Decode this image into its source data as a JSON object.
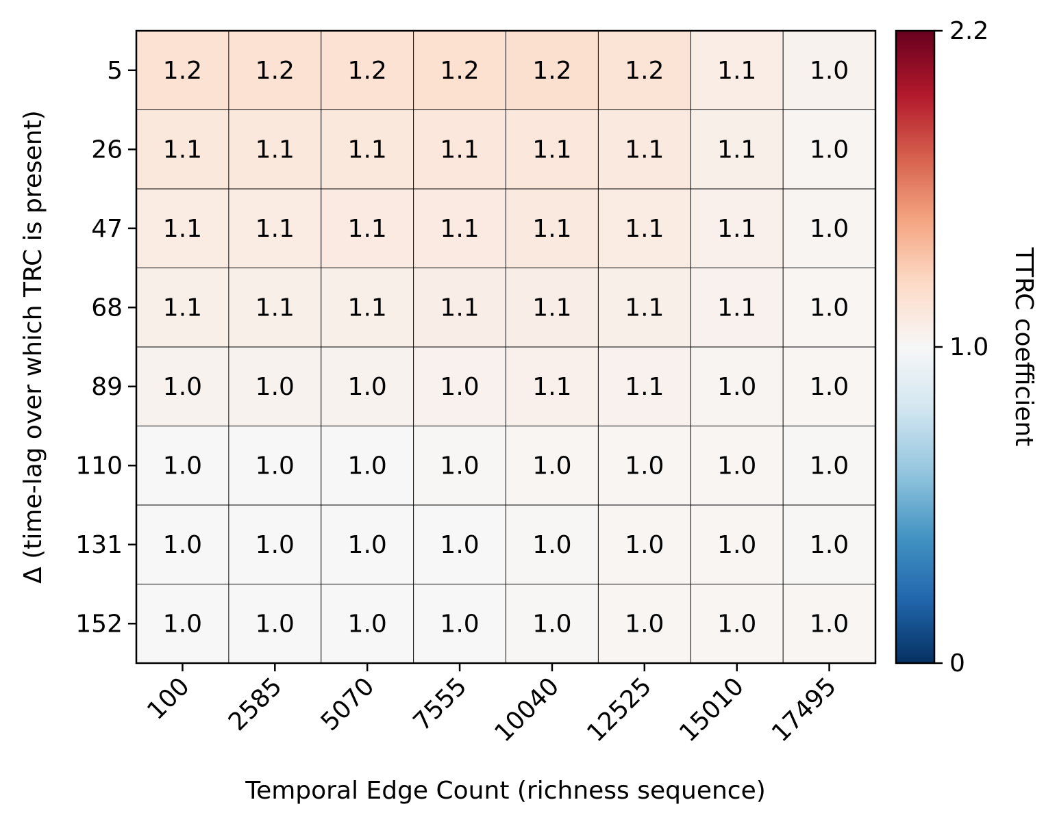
{
  "chart_data": {
    "type": "heatmap",
    "title": "",
    "xlabel": "Temporal Edge Count (richness sequence)",
    "ylabel": "Δ (time-lag over which TRC is present)",
    "x_categories": [
      "100",
      "2585",
      "5070",
      "7555",
      "10040",
      "12525",
      "15010",
      "17495"
    ],
    "y_categories": [
      "5",
      "26",
      "47",
      "68",
      "89",
      "110",
      "131",
      "152"
    ],
    "values": [
      [
        1.18,
        1.18,
        1.18,
        1.19,
        1.2,
        1.17,
        1.09,
        1.04
      ],
      [
        1.13,
        1.13,
        1.13,
        1.14,
        1.14,
        1.12,
        1.07,
        1.03
      ],
      [
        1.1,
        1.1,
        1.11,
        1.11,
        1.12,
        1.1,
        1.06,
        1.03
      ],
      [
        1.07,
        1.07,
        1.07,
        1.08,
        1.08,
        1.07,
        1.05,
        1.02
      ],
      [
        1.04,
        1.04,
        1.04,
        1.05,
        1.06,
        1.05,
        1.03,
        1.02
      ],
      [
        1.0,
        1.0,
        1.0,
        1.01,
        1.02,
        1.02,
        1.02,
        1.01
      ],
      [
        1.0,
        1.0,
        1.0,
        1.0,
        1.01,
        1.02,
        1.02,
        1.01
      ],
      [
        1.0,
        1.0,
        1.0,
        1.0,
        1.01,
        1.02,
        1.02,
        1.02
      ]
    ],
    "cell_labels": [
      [
        "1.2",
        "1.2",
        "1.2",
        "1.2",
        "1.2",
        "1.2",
        "1.1",
        "1.0"
      ],
      [
        "1.1",
        "1.1",
        "1.1",
        "1.1",
        "1.1",
        "1.1",
        "1.1",
        "1.0"
      ],
      [
        "1.1",
        "1.1",
        "1.1",
        "1.1",
        "1.1",
        "1.1",
        "1.1",
        "1.0"
      ],
      [
        "1.1",
        "1.1",
        "1.1",
        "1.1",
        "1.1",
        "1.1",
        "1.1",
        "1.0"
      ],
      [
        "1.0",
        "1.0",
        "1.0",
        "1.0",
        "1.1",
        "1.1",
        "1.0",
        "1.0"
      ],
      [
        "1.0",
        "1.0",
        "1.0",
        "1.0",
        "1.0",
        "1.0",
        "1.0",
        "1.0"
      ],
      [
        "1.0",
        "1.0",
        "1.0",
        "1.0",
        "1.0",
        "1.0",
        "1.0",
        "1.0"
      ],
      [
        "1.0",
        "1.0",
        "1.0",
        "1.0",
        "1.0",
        "1.0",
        "1.0",
        "1.0"
      ]
    ],
    "colorbar": {
      "label": "TTRC coefficient",
      "colormap": "RdBu_r",
      "vmin": 0,
      "vcenter": 1.0,
      "vmax": 2.2,
      "ticks": [
        0,
        1.0,
        2.2
      ],
      "tick_labels": [
        "0",
        "1.0",
        "2.2"
      ]
    },
    "grid": true
  }
}
